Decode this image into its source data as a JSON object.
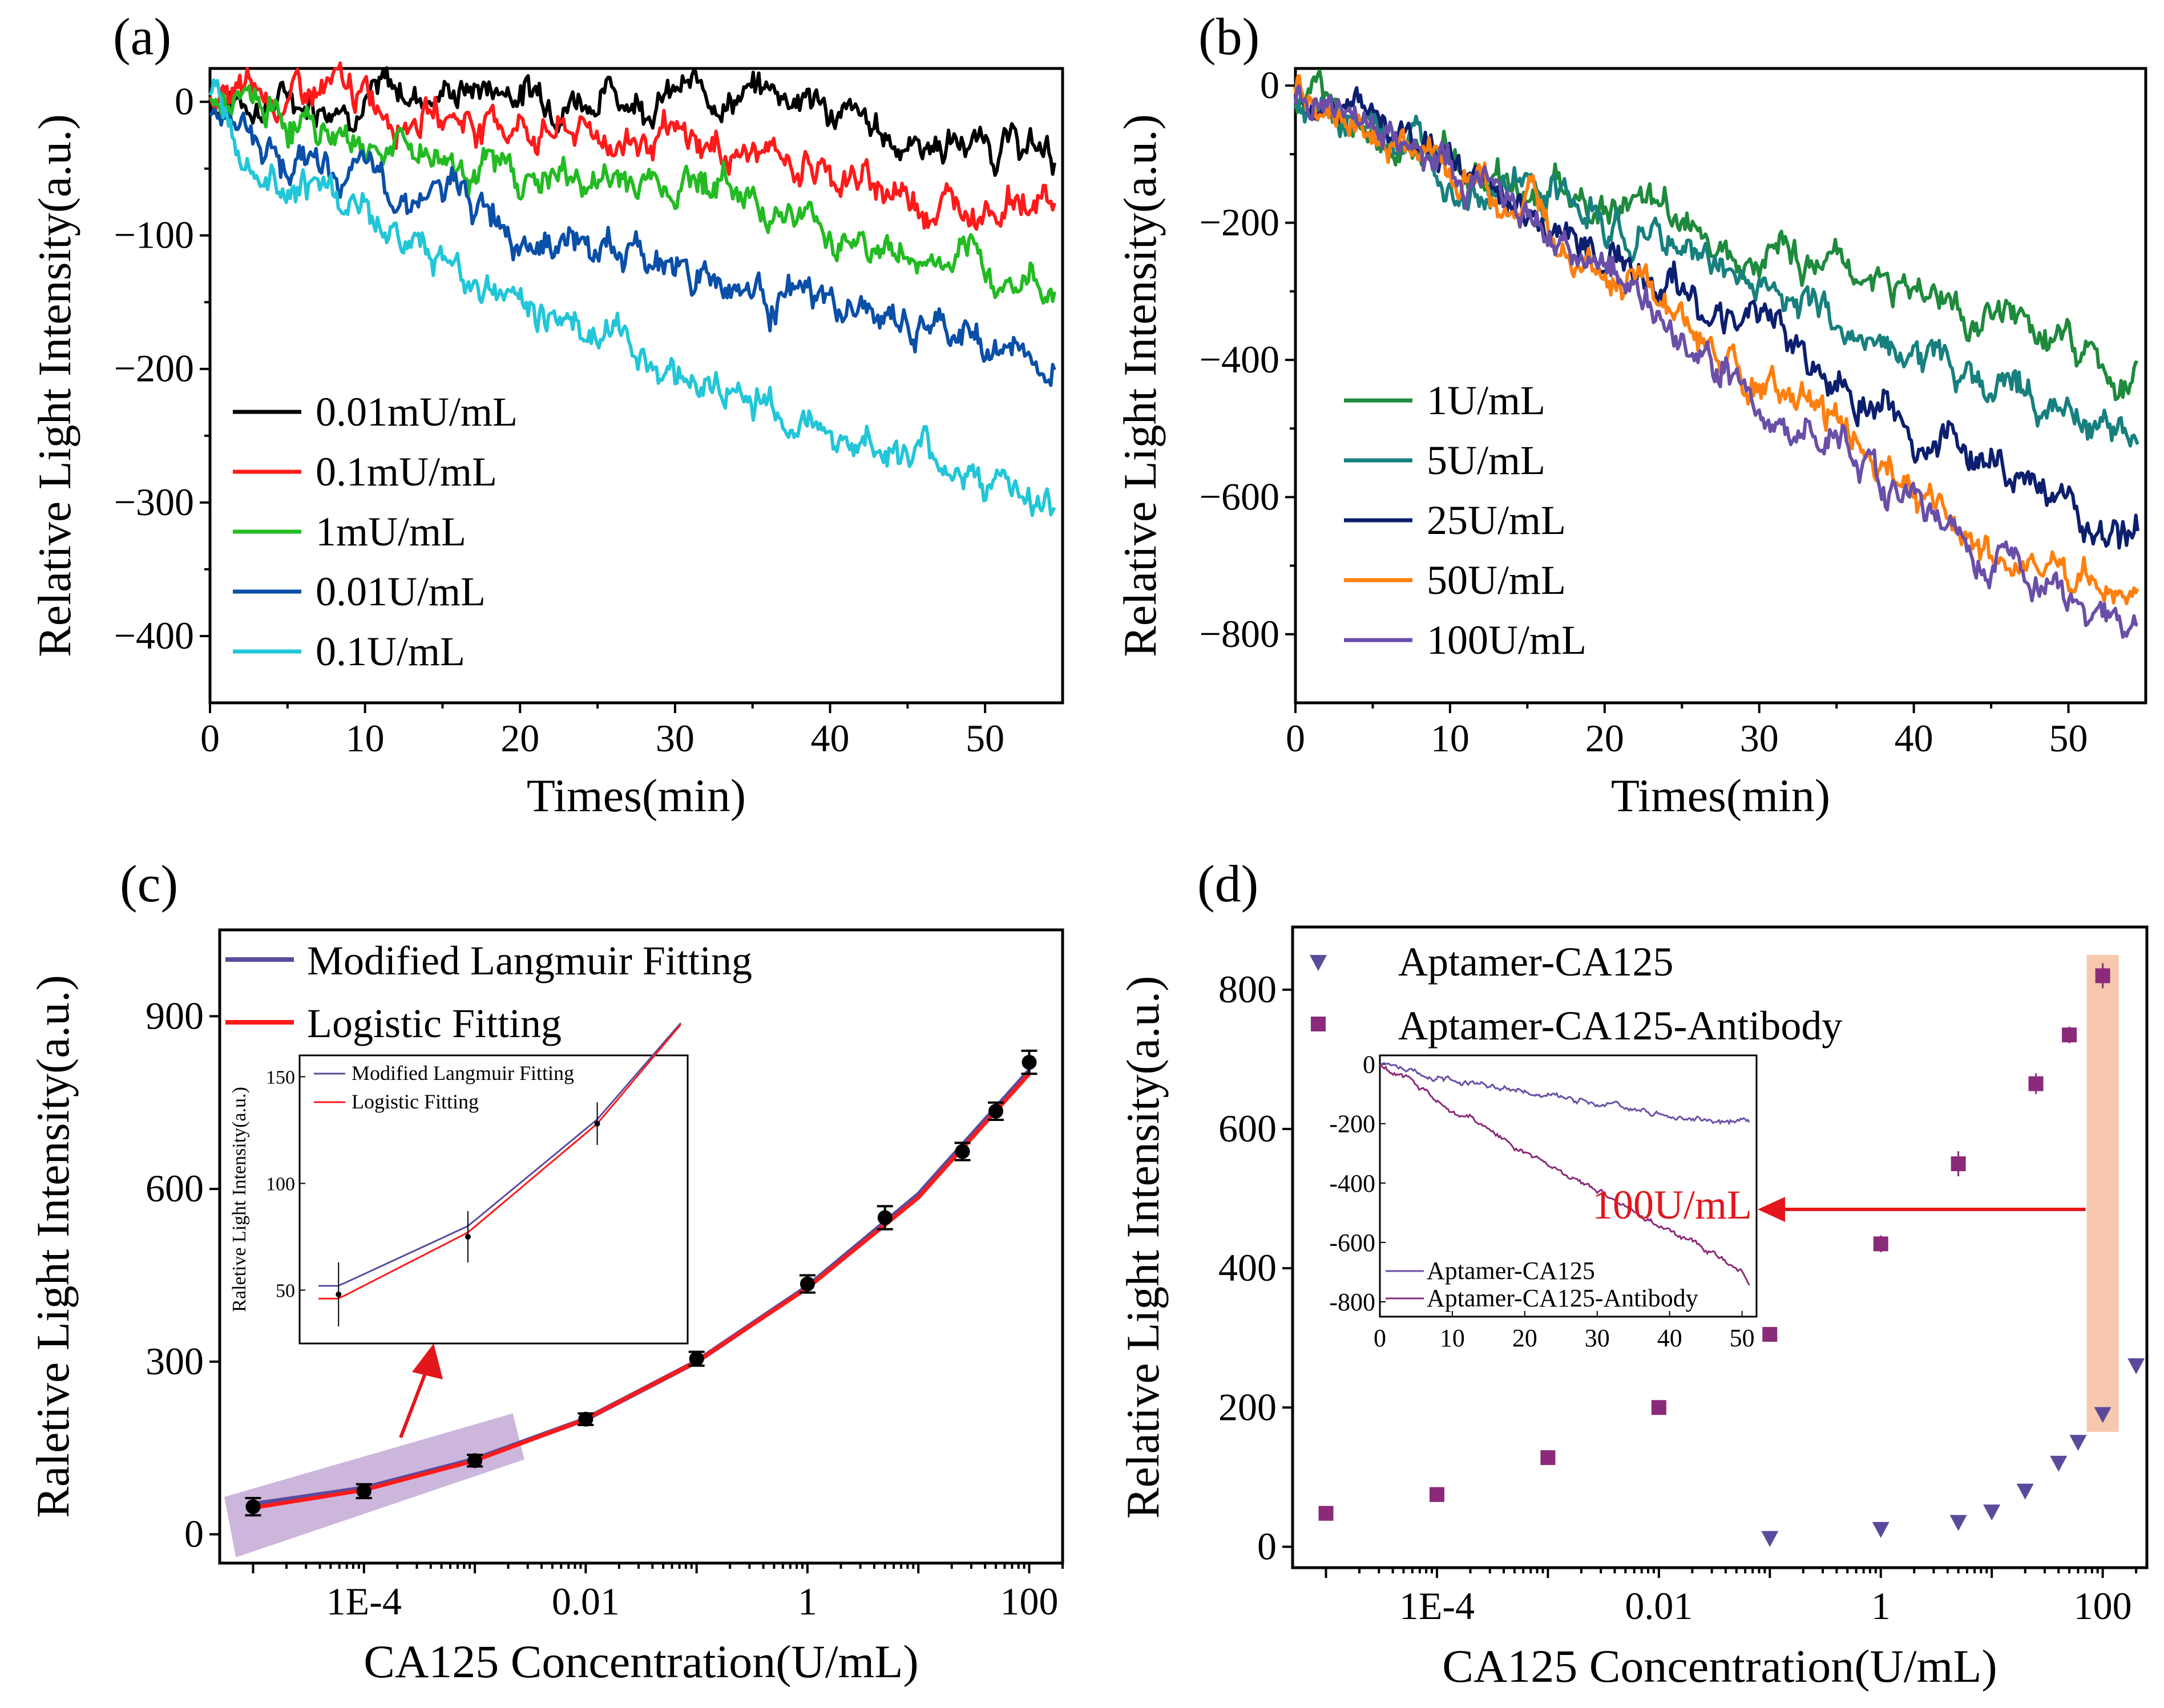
{
  "figure": {
    "panels": [
      "(a)",
      "(b)",
      "(c)",
      "(d)"
    ]
  },
  "chart_data": [
    {
      "id": "a",
      "type": "line",
      "panel_label": "(a)",
      "xlabel": "Times(min)",
      "ylabel": "Relative Light Intensity(a.u.)",
      "xlim": [
        0,
        55
      ],
      "ylim": [
        -450,
        25
      ],
      "xticks": [
        0,
        10,
        20,
        30,
        40,
        50
      ],
      "yticks": [
        0,
        -100,
        -200,
        -300,
        -400
      ],
      "yticklabels": [
        "0",
        "−100",
        "−200",
        "−300",
        "−400"
      ],
      "legend_position": "bottom-left",
      "series": [
        {
          "name": "0.01mU/mL",
          "color": "#000000",
          "x": [
            0,
            5,
            10,
            15,
            18,
            22,
            28,
            33,
            38,
            42,
            45,
            50,
            55
          ],
          "y": [
            0,
            2,
            5,
            8,
            12,
            8,
            5,
            6,
            8,
            -20,
            -30,
            -30,
            -40
          ]
        },
        {
          "name": "0.1mU/mL",
          "color": "#ff1a1a",
          "x": [
            0,
            5,
            8,
            12,
            18,
            25,
            32,
            38,
            42,
            47,
            52,
            55
          ],
          "y": [
            0,
            2,
            6,
            -3,
            -15,
            -25,
            -35,
            -45,
            -60,
            -75,
            -72,
            -80
          ]
        },
        {
          "name": "1mU/mL",
          "color": "#22bb22",
          "x": [
            0,
            3,
            8,
            15,
            20,
            25,
            32,
            38,
            43,
            48,
            55
          ],
          "y": [
            0,
            -8,
            -25,
            -40,
            -55,
            -60,
            -55,
            -85,
            -110,
            -125,
            -140
          ]
        },
        {
          "name": "0.01U/mL",
          "color": "#0a4fa8",
          "x": [
            0,
            5,
            10,
            15,
            20,
            25,
            30,
            35,
            40,
            45,
            50,
            55
          ],
          "y": [
            0,
            -40,
            -60,
            -70,
            -90,
            -110,
            -120,
            -140,
            -155,
            -170,
            -180,
            -200
          ]
        },
        {
          "name": "0.1U/mL",
          "color": "#22c6d8",
          "x": [
            0,
            5,
            10,
            15,
            20,
            25,
            30,
            35,
            40,
            45,
            50,
            55
          ],
          "y": [
            0,
            -50,
            -85,
            -120,
            -150,
            -170,
            -200,
            -225,
            -245,
            -265,
            -280,
            -315
          ]
        }
      ]
    },
    {
      "id": "b",
      "type": "line",
      "panel_label": "(b)",
      "xlabel": "Times(min)",
      "ylabel": "Relative Light Intensity(a.u.)",
      "xlim": [
        0,
        55
      ],
      "ylim": [
        -900,
        25
      ],
      "xticks": [
        0,
        10,
        20,
        30,
        40,
        50
      ],
      "yticks": [
        0,
        -200,
        -400,
        -600,
        -800
      ],
      "yticklabels": [
        "0",
        "−200",
        "−400",
        "−600",
        "−800"
      ],
      "legend_position": "bottom-left",
      "series": [
        {
          "name": "1U/mL",
          "color": "#1e8a3c",
          "x": [
            0,
            5,
            10,
            15,
            20,
            25,
            30,
            35,
            40,
            45,
            50,
            55
          ],
          "y": [
            -20,
            -70,
            -110,
            -140,
            -170,
            -200,
            -230,
            -260,
            -300,
            -340,
            -380,
            -440
          ]
        },
        {
          "name": "5U/mL",
          "color": "#17807e",
          "x": [
            0,
            5,
            10,
            15,
            20,
            25,
            30,
            35,
            40,
            45,
            50,
            55
          ],
          "y": [
            -20,
            -70,
            -120,
            -160,
            -200,
            -240,
            -290,
            -340,
            -390,
            -430,
            -470,
            -530
          ]
        },
        {
          "name": "25U/mL",
          "color": "#0c1f6e",
          "x": [
            0,
            5,
            10,
            15,
            20,
            25,
            30,
            35,
            40,
            45,
            50,
            55
          ],
          "y": [
            -10,
            -60,
            -120,
            -180,
            -240,
            -300,
            -360,
            -420,
            -500,
            -560,
            -610,
            -680
          ]
        },
        {
          "name": "50U/mL",
          "color": "#ff7f0e",
          "x": [
            0,
            5,
            10,
            15,
            20,
            25,
            30,
            35,
            40,
            45,
            50,
            55
          ],
          "y": [
            -10,
            -60,
            -120,
            -190,
            -260,
            -360,
            -440,
            -500,
            -600,
            -680,
            -720,
            -750
          ]
        },
        {
          "name": "100U/mL",
          "color": "#6a4fa8",
          "x": [
            0,
            5,
            10,
            15,
            20,
            25,
            30,
            35,
            40,
            45,
            50,
            55
          ],
          "y": [
            -10,
            -60,
            -120,
            -190,
            -270,
            -360,
            -450,
            -520,
            -600,
            -680,
            -740,
            -810
          ]
        }
      ]
    },
    {
      "id": "c",
      "type": "scatter",
      "panel_label": "(c)",
      "xlabel": "CA125 Concentration(U/mL)",
      "ylabel": "Raletive Light Intensity(a.u.)",
      "xscale": "log",
      "xlim": [
        5e-06,
        200
      ],
      "ylim": [
        -50,
        1050
      ],
      "xticks": [
        0.0001,
        0.01,
        1,
        100
      ],
      "xticklabels": [
        "1E-4",
        "0.01",
        "1",
        "100"
      ],
      "yticks": [
        0,
        300,
        600,
        900
      ],
      "legend_position": "top-left",
      "points": {
        "x": [
          1e-05,
          0.0001,
          0.001,
          0.01,
          0.1,
          1,
          5,
          25,
          50,
          100
        ],
        "y": [
          48,
          75,
          128,
          200,
          305,
          435,
          550,
          665,
          735,
          820
        ],
        "err": [
          15,
          12,
          10,
          10,
          12,
          15,
          20,
          15,
          15,
          20
        ]
      },
      "series": [
        {
          "name": "Modified Langmuir Fitting",
          "color": "#5b4a9c",
          "x": [
            1e-05,
            0.0001,
            0.001,
            0.01,
            0.1,
            1,
            10,
            100
          ],
          "y": [
            52,
            80,
            130,
            200,
            300,
            430,
            590,
            805
          ]
        },
        {
          "name": "Logistic Fitting",
          "color": "#ff1a1a",
          "x": [
            1e-05,
            0.0001,
            0.001,
            0.01,
            0.1,
            1,
            10,
            100
          ],
          "y": [
            46,
            77,
            128,
            200,
            300,
            428,
            585,
            800
          ]
        }
      ],
      "inset": {
        "ylabel": "Raletive Light Intensity(a.u.)",
        "ylim": [
          25,
          160
        ],
        "yticks": [
          50,
          100,
          150
        ],
        "legend": [
          "Modified Langmuir Fitting",
          "Logistic Fitting"
        ]
      }
    },
    {
      "id": "d",
      "type": "scatter",
      "panel_label": "(d)",
      "xlabel": "CA125 Concentration(U/mL)",
      "ylabel": "Relative Light Intensity(a.u.)",
      "xscale": "log",
      "xlim": [
        5e-06,
        250
      ],
      "ylim": [
        -30,
        890
      ],
      "xticks": [
        0.0001,
        0.01,
        1,
        100
      ],
      "xticklabels": [
        "1E-4",
        "0.01",
        "1",
        "100"
      ],
      "yticks": [
        0,
        200,
        400,
        600,
        800
      ],
      "legend_position": "top-left",
      "series": [
        {
          "name": "Aptamer-CA125",
          "color": "#5b4a9c",
          "marker": "triangle-down",
          "x": [
            0.1,
            1,
            5,
            10,
            20,
            40,
            60,
            100,
            200
          ],
          "y": [
            12,
            25,
            35,
            50,
            80,
            120,
            150,
            190,
            260
          ]
        },
        {
          "name": "Aptamer-CA125-Antibody",
          "color": "#8b2a7a",
          "marker": "square",
          "x": [
            1e-05,
            0.0001,
            0.001,
            0.01,
            0.1,
            1,
            5,
            25,
            50,
            100
          ],
          "y": [
            48,
            75,
            128,
            200,
            305,
            435,
            550,
            665,
            735,
            820
          ],
          "err": [
            8,
            8,
            8,
            8,
            10,
            12,
            18,
            15,
            12,
            18
          ]
        }
      ],
      "annotation": "100U/mL",
      "inset": {
        "xlim": [
          0,
          52
        ],
        "ylim": [
          -850,
          30
        ],
        "xticks": [
          0,
          10,
          20,
          30,
          40,
          50
        ],
        "yticks": [
          0,
          -200,
          -400,
          -600,
          -800
        ],
        "yticklabels": [
          "0",
          "-200",
          "-400",
          "-600",
          "-800"
        ],
        "series": [
          {
            "name": "Aptamer-CA125",
            "color": "#6a4fa8",
            "x": [
              0,
              10,
              20,
              30,
              40,
              50
            ],
            "y": [
              0,
              -50,
              -90,
              -130,
              -170,
              -200
            ]
          },
          {
            "name": "Aptamer-CA125-Antibody",
            "color": "#8b2a7a",
            "x": [
              0,
              5,
              10,
              20,
              30,
              40,
              50,
              52
            ],
            "y": [
              0,
              -60,
              -150,
              -300,
              -430,
              -560,
              -700,
              -780
            ]
          }
        ]
      }
    }
  ]
}
